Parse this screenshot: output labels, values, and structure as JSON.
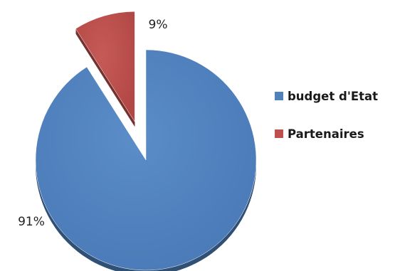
{
  "chart_data": {
    "type": "pie",
    "title": "",
    "categories": [
      "budget d'Etat",
      "Partenaires"
    ],
    "values": [
      91,
      9
    ],
    "unit": "%",
    "data_labels": [
      "91%",
      "9%"
    ],
    "colors": [
      "#4f81bd",
      "#c0504d"
    ],
    "exploded": "Partenaires",
    "style": "3d",
    "legend_position": "right"
  }
}
